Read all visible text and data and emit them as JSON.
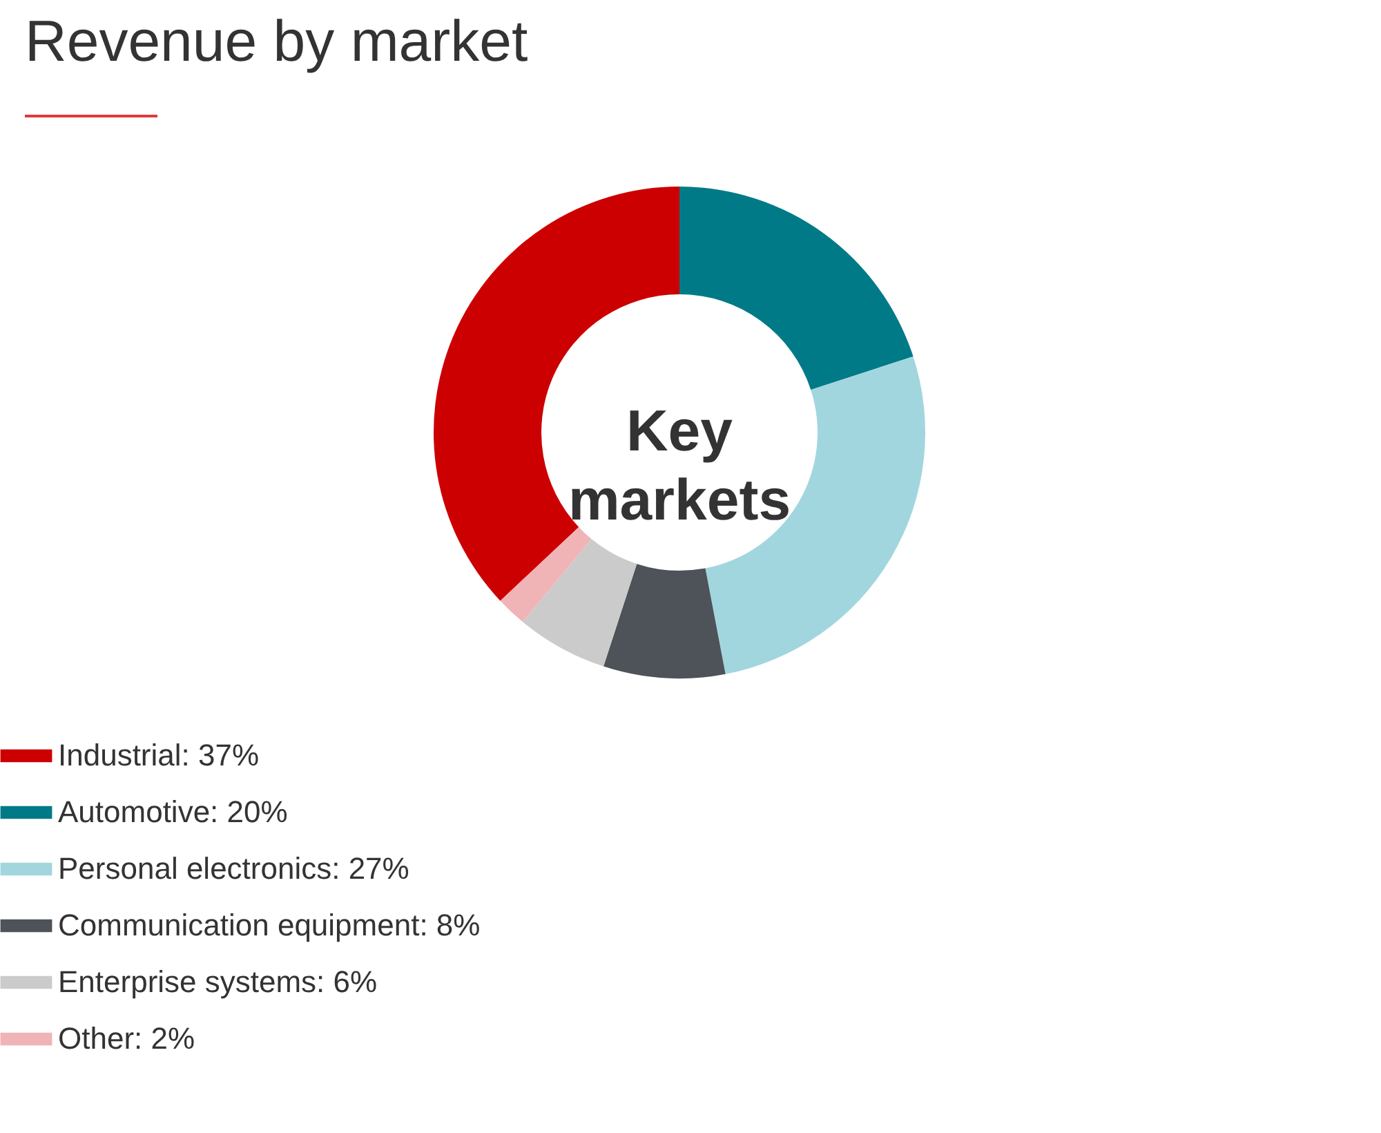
{
  "chart_data": {
    "type": "donut",
    "title": "Revenue by market",
    "categories": [
      "Industrial: 37%",
      "Automotive: 20%",
      "Personal electronics: 27%",
      "Communication equipment: 8%",
      "Enterprise systems: 6%",
      "Other: 2%"
    ],
    "values": [
      37,
      20,
      27,
      8,
      6,
      2
    ],
    "colors": [
      "#cc0000",
      "#007a87",
      "#a2d6df",
      "#4d5358",
      "#cbcbcb",
      "#f0b4b7"
    ],
    "annotations": [
      "Key markets"
    ],
    "legend": "bottom"
  }
}
